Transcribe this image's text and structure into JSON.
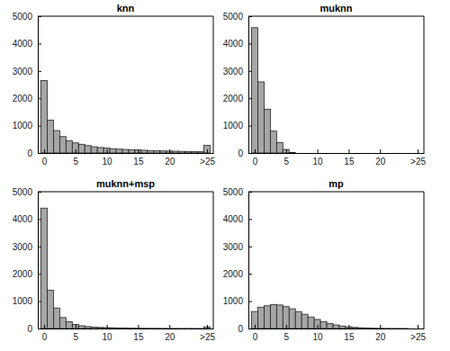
{
  "chart_data": [
    {
      "type": "histogram",
      "title": "knn",
      "color": "#a6a6a6",
      "bins": [
        -0.5,
        0.5,
        1.5,
        2.5,
        3.5,
        4.5,
        5.5,
        6.5,
        7.5,
        8.5,
        9.5,
        10.5,
        11.5,
        12.5,
        13.5,
        14.5,
        15.5,
        16.5,
        17.5,
        18.5,
        19.5,
        20.5,
        21.5,
        22.5,
        23.5,
        24.5,
        25.5,
        26.5
      ],
      "values": [
        2650,
        1200,
        820,
        600,
        450,
        370,
        320,
        270,
        230,
        200,
        180,
        160,
        140,
        130,
        120,
        110,
        100,
        90,
        80,
        75,
        70,
        65,
        60,
        55,
        50,
        45,
        280
      ],
      "xlim": [
        -1,
        27
      ],
      "xticks": [
        0,
        5,
        10,
        15,
        20,
        {
          "value": 26,
          "label": ">25"
        }
      ],
      "ylim": [
        0,
        5000
      ],
      "yticks": [
        0,
        1000,
        2000,
        3000,
        4000,
        5000
      ]
    },
    {
      "type": "histogram",
      "title": "muknn",
      "color": "#a6a6a6",
      "bins": [
        -0.5,
        0.5,
        1.5,
        2.5,
        3.5,
        4.5,
        5.5,
        6.5,
        7.5,
        8.5,
        9.5,
        10.5,
        11.5,
        12.5,
        13.5,
        14.5,
        15.5,
        16.5,
        17.5,
        18.5,
        19.5,
        20.5,
        21.5,
        22.5,
        23.5,
        24.5,
        25.5,
        26.5
      ],
      "values": [
        4580,
        2600,
        1600,
        800,
        380,
        130,
        20,
        0,
        0,
        0,
        0,
        0,
        0,
        0,
        0,
        0,
        0,
        0,
        0,
        0,
        0,
        0,
        0,
        0,
        0,
        0,
        0
      ],
      "xlim": [
        -1,
        27
      ],
      "xticks": [
        0,
        5,
        10,
        15,
        20,
        {
          "value": 26,
          "label": ">25"
        }
      ],
      "ylim": [
        0,
        5000
      ],
      "yticks": [
        0,
        1000,
        2000,
        3000,
        4000,
        5000
      ]
    },
    {
      "type": "histogram",
      "title": "muknn+msp",
      "color": "#a6a6a6",
      "bins": [
        -0.5,
        0.5,
        1.5,
        2.5,
        3.5,
        4.5,
        5.5,
        6.5,
        7.5,
        8.5,
        9.5,
        10.5,
        11.5,
        12.5,
        13.5,
        14.5,
        15.5,
        16.5,
        17.5,
        18.5,
        19.5,
        20.5,
        21.5,
        22.5,
        23.5,
        24.5,
        25.5,
        26.5
      ],
      "values": [
        4400,
        1400,
        750,
        400,
        250,
        150,
        100,
        70,
        50,
        40,
        30,
        25,
        20,
        15,
        12,
        10,
        8,
        6,
        5,
        4,
        3,
        3,
        2,
        2,
        2,
        1,
        60
      ],
      "xlim": [
        -1,
        27
      ],
      "xticks": [
        0,
        5,
        10,
        15,
        20,
        {
          "value": 26,
          "label": ">25"
        }
      ],
      "ylim": [
        0,
        5000
      ],
      "yticks": [
        0,
        1000,
        2000,
        3000,
        4000,
        5000
      ]
    },
    {
      "type": "histogram",
      "title": "mp",
      "color": "#a6a6a6",
      "bins": [
        -0.5,
        0.5,
        1.5,
        2.5,
        3.5,
        4.5,
        5.5,
        6.5,
        7.5,
        8.5,
        9.5,
        10.5,
        11.5,
        12.5,
        13.5,
        14.5,
        15.5,
        16.5,
        17.5,
        18.5,
        19.5,
        20.5,
        21.5,
        22.5,
        23.5,
        24.5,
        25.5,
        26.5
      ],
      "values": [
        620,
        780,
        830,
        870,
        860,
        800,
        720,
        620,
        520,
        420,
        330,
        250,
        180,
        130,
        90,
        60,
        40,
        25,
        15,
        10,
        5,
        3,
        2,
        1,
        1,
        0,
        0
      ],
      "xlim": [
        -1,
        27
      ],
      "xticks": [
        0,
        5,
        10,
        15,
        20,
        {
          "value": 26,
          "label": ">25"
        }
      ],
      "ylim": [
        0,
        5000
      ],
      "yticks": [
        0,
        1000,
        2000,
        3000,
        4000,
        5000
      ]
    }
  ]
}
